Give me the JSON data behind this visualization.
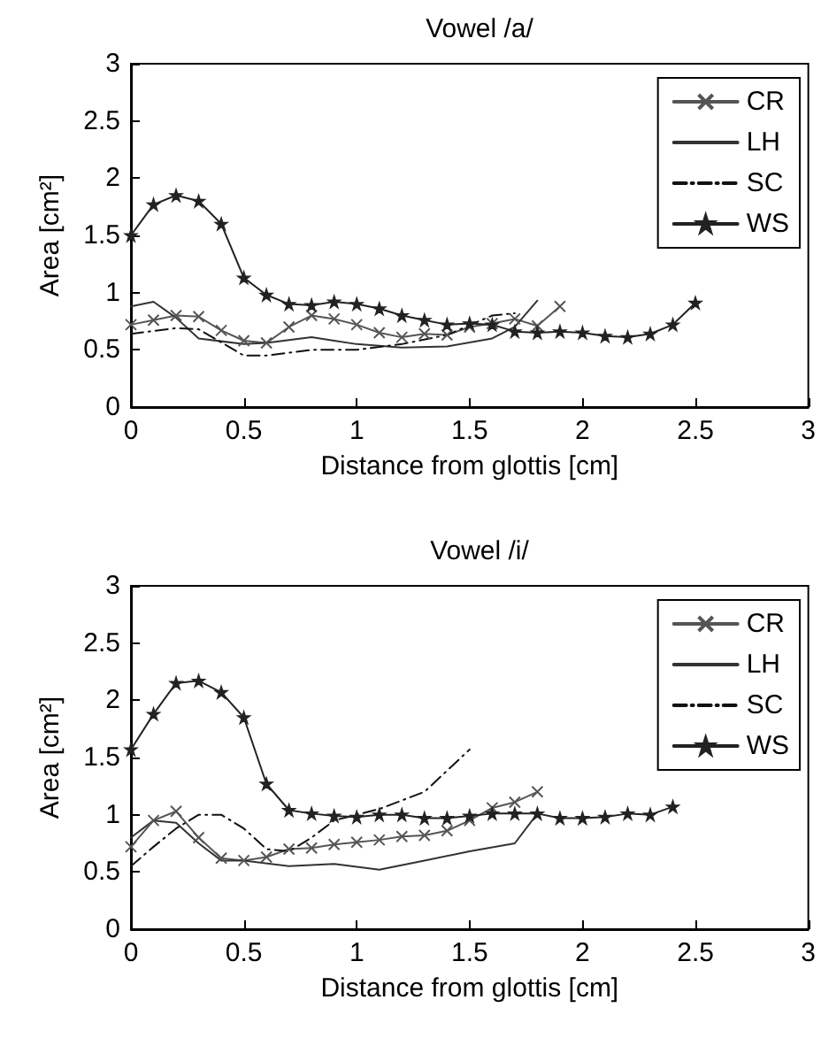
{
  "chart_data": [
    {
      "type": "line",
      "title": "Vowel /a/",
      "xlabel": "Distance from glottis [cm]",
      "ylabel": "Area [cm²]",
      "xlim": [
        0,
        3
      ],
      "ylim": [
        0,
        3
      ],
      "xticks": [
        0,
        0.5,
        1,
        1.5,
        2,
        2.5,
        3
      ],
      "yticks": [
        0,
        0.5,
        1,
        1.5,
        2,
        2.5,
        3
      ],
      "legend": "top right",
      "series": [
        {
          "name": "CR",
          "color": "#555555",
          "marker": "cross",
          "line_style": "solid",
          "x": [
            0,
            0.1,
            0.2,
            0.3,
            0.4,
            0.5,
            0.6,
            0.7,
            0.8,
            0.9,
            1.0,
            1.1,
            1.2,
            1.3,
            1.4,
            1.5,
            1.6,
            1.7,
            1.8,
            1.9
          ],
          "values": [
            0.72,
            0.76,
            0.8,
            0.79,
            0.67,
            0.58,
            0.56,
            0.7,
            0.8,
            0.77,
            0.72,
            0.65,
            0.61,
            0.64,
            0.63,
            0.7,
            0.73,
            0.77,
            0.71,
            0.88
          ]
        },
        {
          "name": "LH",
          "color": "#333333",
          "marker": "none",
          "line_style": "solid",
          "x": [
            0,
            0.1,
            0.2,
            0.3,
            0.5,
            0.6,
            0.8,
            0.9,
            1.0,
            1.2,
            1.4,
            1.6,
            1.7,
            1.8
          ],
          "values": [
            0.88,
            0.92,
            0.78,
            0.6,
            0.55,
            0.56,
            0.61,
            0.58,
            0.55,
            0.52,
            0.53,
            0.6,
            0.7,
            0.93
          ]
        },
        {
          "name": "SC",
          "color": "#111111",
          "marker": "none",
          "line_style": "dashdot",
          "x": [
            0,
            0.2,
            0.3,
            0.5,
            0.6,
            0.8,
            1.0,
            1.2,
            1.4,
            1.6,
            1.7
          ],
          "values": [
            0.64,
            0.69,
            0.68,
            0.45,
            0.45,
            0.5,
            0.5,
            0.55,
            0.63,
            0.8,
            0.82
          ]
        },
        {
          "name": "WS",
          "color": "#222222",
          "marker": "star",
          "line_style": "solid",
          "x": [
            0,
            0.1,
            0.2,
            0.3,
            0.4,
            0.5,
            0.6,
            0.7,
            0.8,
            0.9,
            1.0,
            1.1,
            1.2,
            1.3,
            1.4,
            1.5,
            1.6,
            1.7,
            1.8,
            1.9,
            2.0,
            2.1,
            2.2,
            2.3,
            2.4,
            2.5
          ],
          "values": [
            1.5,
            1.77,
            1.85,
            1.8,
            1.6,
            1.13,
            0.98,
            0.9,
            0.89,
            0.92,
            0.9,
            0.86,
            0.8,
            0.76,
            0.72,
            0.73,
            0.72,
            0.66,
            0.65,
            0.66,
            0.65,
            0.62,
            0.61,
            0.64,
            0.72,
            0.91
          ]
        }
      ]
    },
    {
      "type": "line",
      "title": "Vowel /i/",
      "xlabel": "Distance from glottis [cm]",
      "ylabel": "Area [cm²]",
      "xlim": [
        0,
        3
      ],
      "ylim": [
        0,
        3
      ],
      "xticks": [
        0,
        0.5,
        1,
        1.5,
        2,
        2.5,
        3
      ],
      "yticks": [
        0,
        0.5,
        1,
        1.5,
        2,
        2.5,
        3
      ],
      "legend": "top right",
      "series": [
        {
          "name": "CR",
          "color": "#555555",
          "marker": "cross",
          "line_style": "solid",
          "x": [
            0,
            0.1,
            0.2,
            0.3,
            0.4,
            0.5,
            0.6,
            0.7,
            0.8,
            0.9,
            1.0,
            1.1,
            1.2,
            1.3,
            1.4,
            1.5,
            1.6,
            1.7,
            1.8
          ],
          "values": [
            0.72,
            0.95,
            1.03,
            0.8,
            0.62,
            0.6,
            0.63,
            0.7,
            0.71,
            0.74,
            0.76,
            0.78,
            0.81,
            0.82,
            0.86,
            0.95,
            1.06,
            1.11,
            1.2
          ]
        },
        {
          "name": "LH",
          "color": "#333333",
          "marker": "none",
          "line_style": "solid",
          "x": [
            0,
            0.1,
            0.2,
            0.3,
            0.4,
            0.5,
            0.7,
            0.9,
            1.1,
            1.3,
            1.5,
            1.7,
            1.8
          ],
          "values": [
            0.8,
            0.95,
            0.93,
            0.75,
            0.6,
            0.6,
            0.55,
            0.57,
            0.52,
            0.6,
            0.68,
            0.75,
            1.01
          ]
        },
        {
          "name": "SC",
          "color": "#111111",
          "marker": "none",
          "line_style": "dashdot",
          "x": [
            0,
            0.1,
            0.2,
            0.3,
            0.4,
            0.5,
            0.6,
            0.7,
            0.8,
            0.9,
            1.1,
            1.3,
            1.5
          ],
          "values": [
            0.55,
            0.72,
            0.88,
            1.0,
            1.0,
            0.88,
            0.7,
            0.68,
            0.8,
            0.95,
            1.05,
            1.2,
            1.57
          ]
        },
        {
          "name": "WS",
          "color": "#222222",
          "marker": "star",
          "line_style": "solid",
          "x": [
            0,
            0.1,
            0.2,
            0.3,
            0.4,
            0.5,
            0.6,
            0.7,
            0.8,
            0.9,
            1.0,
            1.1,
            1.2,
            1.3,
            1.4,
            1.5,
            1.6,
            1.7,
            1.8,
            1.9,
            2.0,
            2.1,
            2.2,
            2.3,
            2.4
          ],
          "values": [
            1.57,
            1.88,
            2.15,
            2.17,
            2.07,
            1.85,
            1.27,
            1.04,
            1.01,
            0.99,
            0.98,
            1.0,
            1.0,
            0.97,
            0.97,
            0.99,
            1.01,
            1.01,
            1.01,
            0.97,
            0.97,
            0.98,
            1.01,
            1.0,
            1.07
          ]
        }
      ]
    }
  ]
}
